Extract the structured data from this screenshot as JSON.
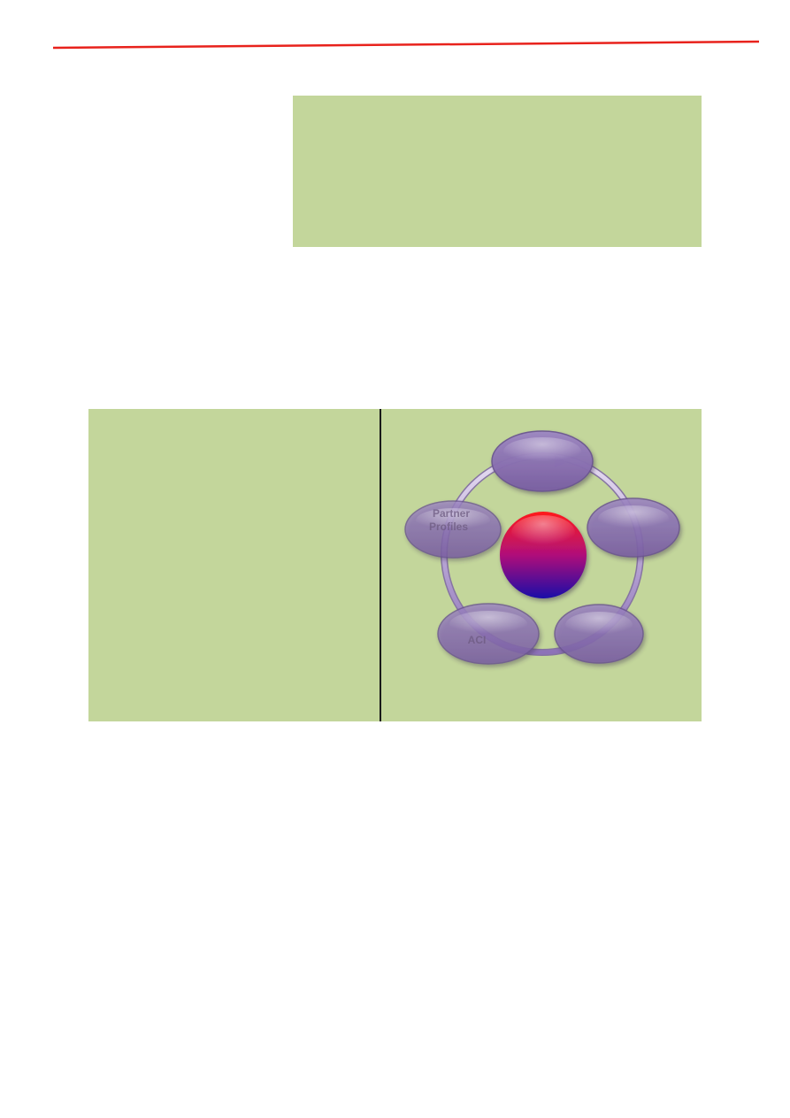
{
  "colors": {
    "header_rule": "#e8221c",
    "box_fill": "#c3d69b",
    "divider": "#1a1a1a",
    "ellipse_fill": "#8a6fb0",
    "ring": "#a48cc8",
    "center_top": "#ff1a1a",
    "center_bottom": "#1a0aa8"
  },
  "diagram": {
    "center_label": "",
    "nodes": [
      {
        "id": "top",
        "lines": [
          "",
          ""
        ]
      },
      {
        "id": "right",
        "lines": [
          "",
          ""
        ]
      },
      {
        "id": "bottom-right",
        "lines": [
          "",
          ""
        ]
      },
      {
        "id": "bottom-left",
        "lines": [
          "",
          "ACI"
        ]
      },
      {
        "id": "left",
        "lines": [
          "Partner",
          "Profiles"
        ]
      }
    ]
  }
}
